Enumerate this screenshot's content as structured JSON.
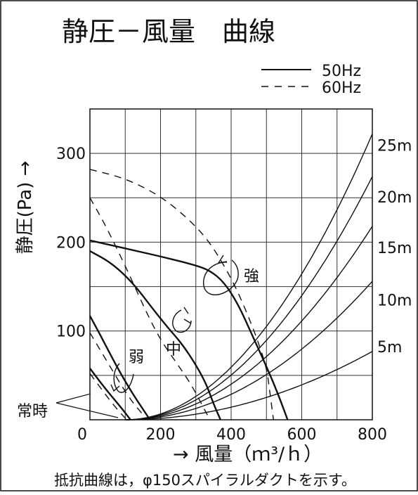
{
  "chart_data": {
    "type": "line",
    "title": "静圧－風量　曲線",
    "xlabel": "→ 風量（ｍ³/ｈ）",
    "ylabel": "静圧(Pa) →",
    "x_origin_label": "0",
    "xlim": [
      0,
      800
    ],
    "ylim": [
      0,
      350
    ],
    "x_ticks": [
      0,
      200,
      400,
      600,
      800
    ],
    "x_tick_labels": [
      "200",
      "400",
      "600",
      "800"
    ],
    "y_ticks": [
      100,
      200,
      300
    ],
    "y_tick_labels": [
      "100",
      "200",
      "300"
    ],
    "grid": true,
    "legend": {
      "position": "top-right",
      "entries": [
        {
          "label": "50Hz",
          "style": "solid"
        },
        {
          "label": "60Hz",
          "style": "dashed"
        }
      ]
    },
    "series": [
      {
        "name": "強",
        "freq": "50Hz",
        "style": "solid",
        "weight": "bold",
        "points": [
          [
            0,
            202
          ],
          [
            100,
            193
          ],
          [
            200,
            184
          ],
          [
            300,
            174
          ],
          [
            340,
            168
          ],
          [
            380,
            155
          ],
          [
            420,
            130
          ],
          [
            460,
            95
          ],
          [
            500,
            60
          ],
          [
            530,
            32
          ],
          [
            560,
            0
          ]
        ]
      },
      {
        "name": "強",
        "freq": "60Hz",
        "style": "dashed",
        "weight": "normal",
        "points": [
          [
            0,
            282
          ],
          [
            100,
            272
          ],
          [
            200,
            252
          ],
          [
            280,
            226
          ],
          [
            340,
            200
          ],
          [
            400,
            160
          ],
          [
            440,
            125
          ],
          [
            470,
            95
          ],
          [
            500,
            60
          ],
          [
            510,
            30
          ],
          [
            520,
            0
          ]
        ]
      },
      {
        "name": "中",
        "freq": "50Hz",
        "style": "solid",
        "weight": "bold",
        "points": [
          [
            0,
            190
          ],
          [
            60,
            177
          ],
          [
            120,
            155
          ],
          [
            180,
            124
          ],
          [
            220,
            104
          ],
          [
            260,
            86
          ],
          [
            300,
            62
          ],
          [
            330,
            40
          ],
          [
            350,
            18
          ],
          [
            370,
            0
          ]
        ]
      },
      {
        "name": "中",
        "freq": "60Hz",
        "style": "dashed",
        "weight": "normal",
        "points": [
          [
            0,
            250
          ],
          [
            40,
            222
          ],
          [
            80,
            190
          ],
          [
            120,
            156
          ],
          [
            160,
            121
          ],
          [
            200,
            90
          ],
          [
            240,
            67
          ],
          [
            280,
            44
          ],
          [
            300,
            30
          ],
          [
            320,
            15
          ],
          [
            340,
            0
          ]
        ]
      },
      {
        "name": "弱",
        "freq": "50Hz",
        "style": "solid",
        "weight": "bold",
        "points": [
          [
            0,
            117
          ],
          [
            30,
            95
          ],
          [
            60,
            72
          ],
          [
            90,
            50
          ],
          [
            120,
            30
          ],
          [
            150,
            12
          ],
          [
            170,
            0
          ]
        ]
      },
      {
        "name": "弱",
        "freq": "60Hz",
        "style": "dashed",
        "weight": "normal",
        "points": [
          [
            0,
            98
          ],
          [
            30,
            78
          ],
          [
            60,
            58
          ],
          [
            90,
            38
          ],
          [
            120,
            20
          ],
          [
            150,
            6
          ],
          [
            160,
            0
          ]
        ]
      },
      {
        "name": "常時",
        "freq": "50Hz",
        "style": "solid",
        "weight": "bold",
        "points": [
          [
            0,
            58
          ],
          [
            30,
            42
          ],
          [
            60,
            27
          ],
          [
            90,
            13
          ],
          [
            115,
            0
          ]
        ]
      },
      {
        "name": "常時",
        "freq": "60Hz",
        "style": "dashed",
        "weight": "normal",
        "points": [
          [
            0,
            52
          ],
          [
            30,
            36
          ],
          [
            60,
            20
          ],
          [
            90,
            6
          ],
          [
            105,
            0
          ]
        ]
      }
    ],
    "resistance_curves": {
      "start_x": 100,
      "labels": [
        "25m",
        "20m",
        "15m",
        "10m",
        "5m"
      ],
      "values_at_800": [
        322,
        274,
        218,
        156,
        77
      ]
    },
    "series_labels": {
      "strong": "強",
      "medium": "中",
      "weak": "弱",
      "always": "常時"
    },
    "footnote": "抵抗曲線は，φ150スパイラルダクトを示す。"
  }
}
